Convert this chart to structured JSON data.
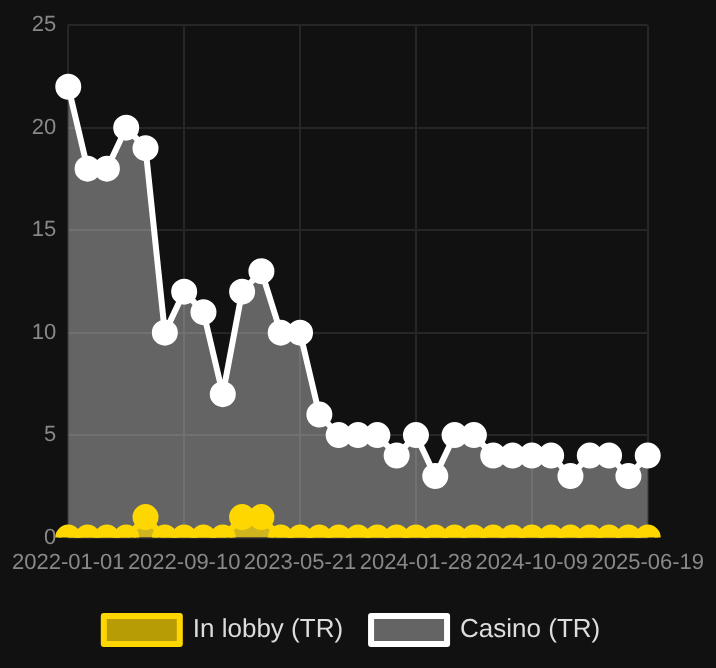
{
  "chart_data": {
    "type": "area",
    "categories": [
      "2022-01-01",
      null,
      null,
      null,
      null,
      null,
      "2022-09-10",
      null,
      null,
      null,
      null,
      null,
      "2023-05-21",
      null,
      null,
      null,
      null,
      null,
      "2024-01-28",
      null,
      null,
      null,
      null,
      null,
      "2024-10-09",
      null,
      null,
      null,
      null,
      null,
      "2025-06-19"
    ],
    "series": [
      {
        "name": "In lobby (TR)",
        "color": "#ffd700",
        "values": [
          0,
          0,
          0,
          0,
          1,
          0,
          0,
          0,
          0,
          1,
          1,
          0,
          0,
          0,
          0,
          0,
          0,
          0,
          0,
          0,
          0,
          0,
          0,
          0,
          0,
          0,
          0,
          0,
          0,
          0,
          0
        ]
      },
      {
        "name": "Casino (TR)",
        "color": "#ffffff",
        "values": [
          22,
          18,
          18,
          20,
          19,
          10,
          12,
          11,
          7,
          12,
          13,
          10,
          10,
          6,
          5,
          5,
          5,
          4,
          5,
          3,
          5,
          5,
          4,
          4,
          4,
          4,
          3,
          4,
          4,
          3,
          4
        ]
      }
    ],
    "ylim": [
      0,
      25
    ],
    "yticks": [
      0,
      5,
      10,
      15,
      20,
      25
    ],
    "grid": true,
    "legend": "bottom",
    "marker": "circle"
  }
}
